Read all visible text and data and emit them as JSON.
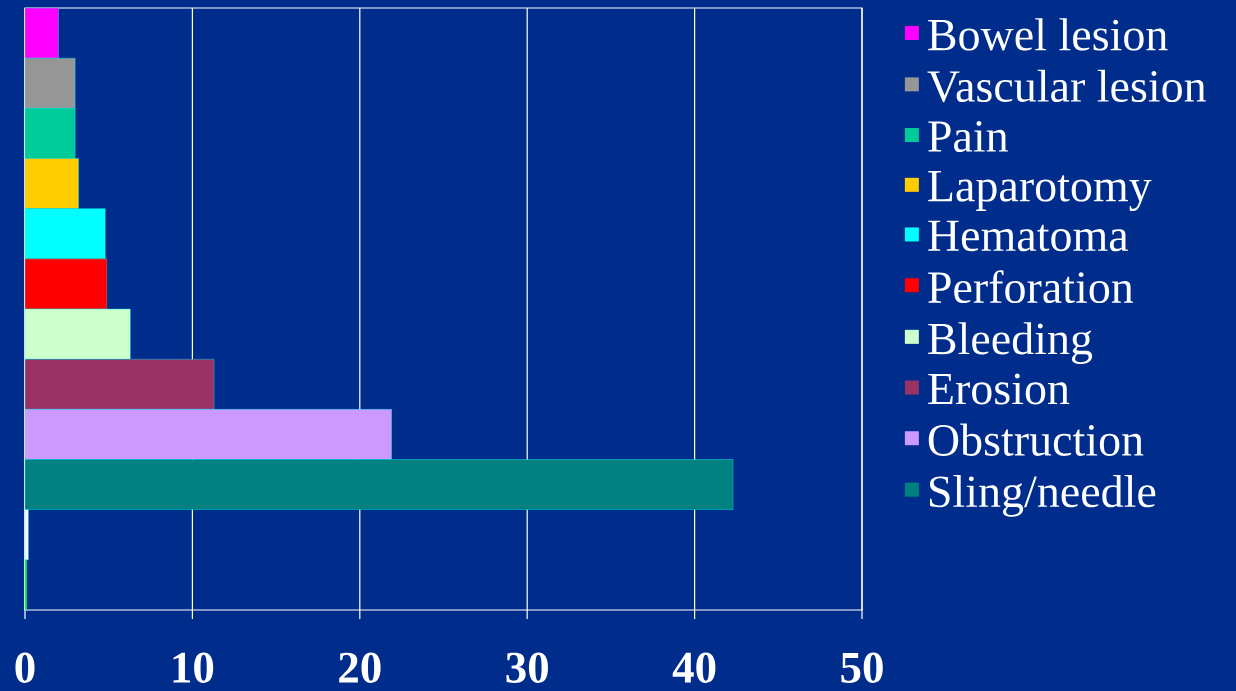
{
  "chart_data": {
    "type": "bar",
    "orientation": "horizontal",
    "categories": [
      null,
      null,
      null,
      null,
      null,
      null,
      null,
      null,
      null,
      null,
      null,
      null
    ],
    "series": [
      {
        "name": "Bowel lesion",
        "color": "#ff00ff",
        "values": [
          2.0,
          null,
          null,
          null,
          null,
          null,
          null,
          null,
          null,
          null,
          null,
          null
        ]
      },
      {
        "name": "Vascular lesion",
        "color": "#969696",
        "values": [
          null,
          3.0,
          null,
          null,
          null,
          null,
          null,
          null,
          null,
          null,
          null,
          null
        ]
      },
      {
        "name": "Pain",
        "color": "#00cc99",
        "values": [
          null,
          null,
          3.0,
          null,
          null,
          null,
          null,
          null,
          null,
          null,
          null,
          null
        ]
      },
      {
        "name": "Laparotomy",
        "color": "#ffcc00",
        "values": [
          null,
          null,
          null,
          3.2,
          null,
          null,
          null,
          null,
          null,
          null,
          null,
          null
        ]
      },
      {
        "name": "Hematoma",
        "color": "#00ffff",
        "values": [
          null,
          null,
          null,
          null,
          4.8,
          null,
          null,
          null,
          null,
          null,
          null,
          null
        ]
      },
      {
        "name": "Perforation",
        "color": "#ff0000",
        "values": [
          null,
          null,
          null,
          null,
          null,
          4.9,
          null,
          null,
          null,
          null,
          null,
          null
        ]
      },
      {
        "name": "Bleeding",
        "color": "#ccffcc",
        "values": [
          null,
          null,
          null,
          null,
          null,
          null,
          6.3,
          null,
          null,
          null,
          null,
          null
        ]
      },
      {
        "name": "Erosion",
        "color": "#993366",
        "values": [
          null,
          null,
          null,
          null,
          null,
          null,
          null,
          11.3,
          null,
          null,
          null,
          null
        ]
      },
      {
        "name": "Obstruction",
        "color": "#cc99ff",
        "values": [
          null,
          null,
          null,
          null,
          null,
          null,
          null,
          null,
          21.9,
          null,
          null,
          null
        ]
      },
      {
        "name": "Sling/needle",
        "color": "#008080",
        "values": [
          null,
          null,
          null,
          null,
          null,
          null,
          null,
          null,
          null,
          42.3,
          null,
          null
        ]
      },
      {
        "color": "#ffffff",
        "values": [
          null,
          null,
          null,
          null,
          null,
          null,
          null,
          null,
          null,
          null,
          0.2,
          null
        ]
      },
      {
        "color": "#00ff00",
        "values": [
          null,
          null,
          null,
          null,
          null,
          null,
          null,
          null,
          null,
          null,
          null,
          0.1
        ]
      }
    ],
    "xlim": [
      0,
      50
    ],
    "xticks": [
      0,
      10,
      20,
      30,
      40,
      50
    ],
    "grid": "x",
    "legend": "right",
    "tick_labels": "x"
  }
}
